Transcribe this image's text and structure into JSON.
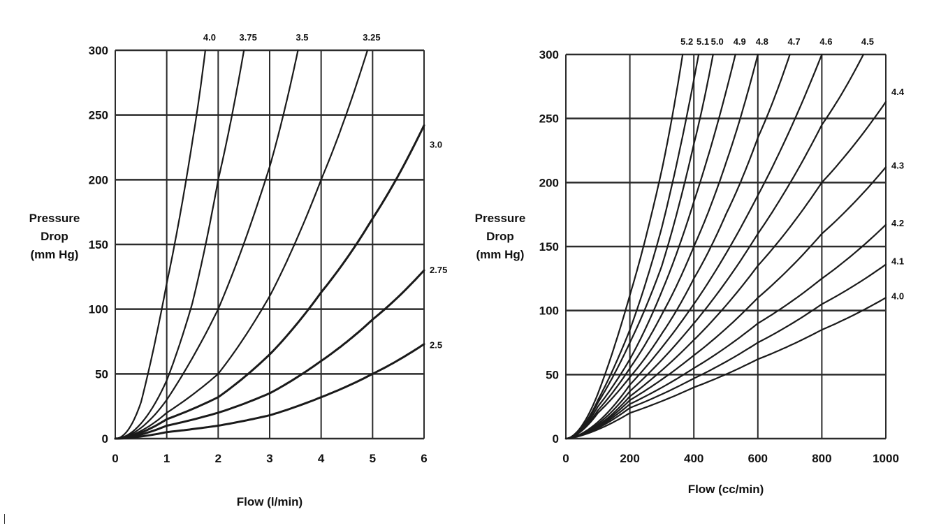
{
  "chart_data": [
    {
      "type": "line",
      "title": "",
      "xlabel": "Flow (l/min)",
      "ylabel": [
        "Pressure",
        "Drop",
        "(mm Hg)"
      ],
      "xlim": [
        0,
        6
      ],
      "ylim": [
        0,
        300
      ],
      "xticks": [
        "0",
        "1",
        "2",
        "3",
        "4",
        "5",
        "6"
      ],
      "yticks": [
        "0",
        "50",
        "100",
        "150",
        "200",
        "250",
        "300"
      ],
      "grid": true,
      "series": [
        {
          "name": "4.0",
          "label": "4.0",
          "exp": 2.05,
          "x": [
            0,
            0.5,
            1.0,
            1.5,
            1.75
          ],
          "y": [
            0,
            28,
            120,
            230,
            300
          ]
        },
        {
          "name": "3.75",
          "label": "3.75",
          "exp": 1.95,
          "x": [
            0,
            1.0,
            1.5,
            2.0,
            2.5
          ],
          "y": [
            0,
            45,
            105,
            200,
            300
          ]
        },
        {
          "name": "3.5",
          "label": "3.5",
          "exp": 1.85,
          "x": [
            0,
            1.0,
            2.0,
            3.0,
            3.55
          ],
          "y": [
            0,
            30,
            100,
            210,
            300
          ]
        },
        {
          "name": "3.25",
          "label": "3.25",
          "exp": 1.75,
          "x": [
            0,
            1.0,
            2.0,
            3.0,
            4.0,
            4.9
          ],
          "y": [
            0,
            20,
            50,
            110,
            200,
            300
          ]
        },
        {
          "name": "3.0",
          "label": "3.0",
          "exp": 1.7,
          "x": [
            0,
            1.0,
            2.0,
            3.0,
            4.0,
            5.0,
            6.0
          ],
          "y": [
            0,
            15,
            32,
            65,
            113,
            170,
            242
          ]
        },
        {
          "name": "2.75",
          "label": "2.75",
          "exp": 1.65,
          "x": [
            0,
            1.0,
            2.0,
            3.0,
            4.0,
            5.0,
            6.0
          ],
          "y": [
            0,
            10,
            20,
            35,
            60,
            92,
            130
          ]
        },
        {
          "name": "2.5",
          "label": "2.5",
          "exp": 1.6,
          "x": [
            0,
            1.0,
            2.0,
            3.0,
            4.0,
            5.0,
            6.0
          ],
          "y": [
            0,
            5,
            10,
            18,
            32,
            50,
            73
          ]
        }
      ]
    },
    {
      "type": "line",
      "title": "",
      "xlabel": "Flow (cc/min)",
      "ylabel": [
        "Pressure",
        "Drop",
        "(mm Hg)"
      ],
      "xlim": [
        0,
        1000
      ],
      "ylim": [
        0,
        300
      ],
      "xticks": [
        "0",
        "200",
        "400",
        "600",
        "800",
        "1000"
      ],
      "yticks": [
        "0",
        "50",
        "100",
        "150",
        "200",
        "250",
        "300"
      ],
      "grid": true,
      "series": [
        {
          "name": "5.2",
          "label": "5.2",
          "exp": 1.8,
          "x": [
            0,
            100,
            200,
            300,
            365
          ],
          "y": [
            0,
            35,
            112,
            210,
            300
          ]
        },
        {
          "name": "5.1",
          "label": "5.1",
          "exp": 1.8,
          "x": [
            0,
            100,
            200,
            300,
            415
          ],
          "y": [
            0,
            30,
            85,
            165,
            300
          ]
        },
        {
          "name": "5.0",
          "label": "5.0",
          "exp": 1.75,
          "x": [
            0,
            100,
            200,
            300,
            400,
            460
          ],
          "y": [
            0,
            28,
            75,
            135,
            230,
            300
          ]
        },
        {
          "name": "4.9",
          "label": "4.9",
          "exp": 1.75,
          "x": [
            0,
            100,
            200,
            300,
            400,
            530
          ],
          "y": [
            0,
            25,
            62,
            115,
            185,
            300
          ]
        },
        {
          "name": "4.8",
          "label": "4.8",
          "exp": 1.7,
          "x": [
            0,
            100,
            200,
            300,
            400,
            500,
            600
          ],
          "y": [
            0,
            22,
            55,
            97,
            150,
            215,
            300
          ]
        },
        {
          "name": "4.7",
          "label": "4.7",
          "exp": 1.7,
          "x": [
            0,
            100,
            200,
            300,
            400,
            500,
            600,
            700
          ],
          "y": [
            0,
            20,
            48,
            82,
            125,
            175,
            235,
            300
          ]
        },
        {
          "name": "4.6",
          "label": "4.6",
          "exp": 1.7,
          "x": [
            0,
            200,
            400,
            600,
            800
          ],
          "y": [
            0,
            42,
            105,
            190,
            300
          ]
        },
        {
          "name": "4.5",
          "label": "4.5",
          "exp": 1.7,
          "x": [
            0,
            200,
            400,
            600,
            800,
            930
          ],
          "y": [
            0,
            37,
            90,
            160,
            245,
            300
          ]
        },
        {
          "name": "4.4",
          "label": "4.4",
          "exp": 1.7,
          "x": [
            0,
            200,
            400,
            600,
            800,
            1000
          ],
          "y": [
            0,
            33,
            77,
            135,
            200,
            263
          ]
        },
        {
          "name": "4.3",
          "label": "4.3",
          "exp": 1.65,
          "x": [
            0,
            200,
            400,
            600,
            800,
            1000
          ],
          "y": [
            0,
            30,
            65,
            110,
            160,
            212
          ]
        },
        {
          "name": "4.2",
          "label": "4.2",
          "exp": 1.6,
          "x": [
            0,
            200,
            400,
            600,
            800,
            1000
          ],
          "y": [
            0,
            27,
            55,
            90,
            125,
            167
          ]
        },
        {
          "name": "4.1",
          "label": "4.1",
          "exp": 1.55,
          "x": [
            0,
            200,
            400,
            600,
            800,
            1000
          ],
          "y": [
            0,
            24,
            47,
            75,
            105,
            136
          ]
        },
        {
          "name": "4.0",
          "label": "4.0",
          "exp": 1.5,
          "x": [
            0,
            200,
            400,
            600,
            800,
            1000
          ],
          "y": [
            0,
            20,
            40,
            62,
            85,
            110
          ]
        }
      ]
    }
  ]
}
